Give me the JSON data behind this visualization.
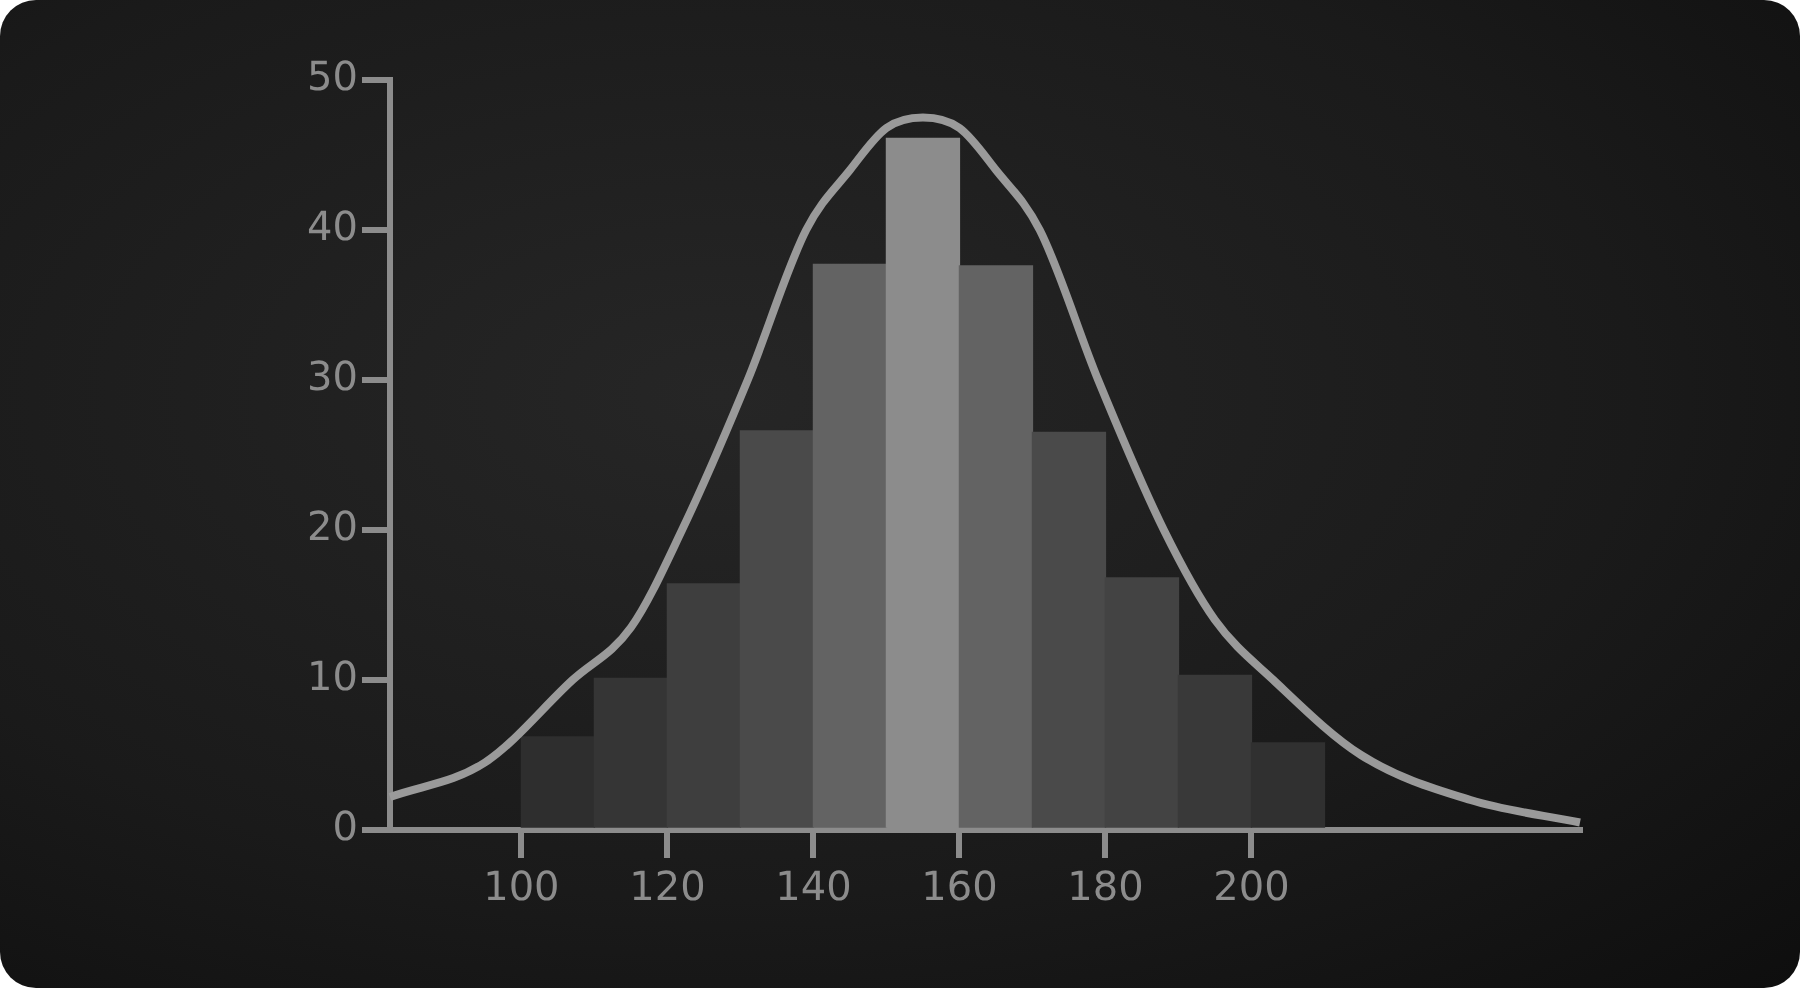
{
  "chart_data": {
    "type": "histogram",
    "bins": [
      100,
      110,
      120,
      130,
      140,
      150,
      160,
      170,
      180,
      190,
      200,
      210
    ],
    "values": [
      6.2,
      10.1,
      16.4,
      26.6,
      37.7,
      46.1,
      37.6,
      26.5,
      16.8,
      10.3,
      5.8
    ],
    "colors": [
      "#2e2e2e",
      "#353535",
      "#3e3e3e",
      "#4a4a4a",
      "#636363",
      "#8c8c8c",
      "#636363",
      "#4a4a4a",
      "#434343",
      "#393939",
      "#303030"
    ],
    "series": [
      {
        "type": "line",
        "color": "#9a9a9a",
        "x": [
          82,
          95,
          107,
          115,
          122,
          131,
          139,
          145,
          150,
          155,
          160,
          165,
          171,
          179,
          188,
          195,
          203,
          215,
          230,
          245
        ],
        "values": [
          2.2,
          4.5,
          10,
          13.5,
          20,
          30,
          40,
          44,
          46.8,
          47.5,
          46.8,
          44,
          40,
          30,
          20,
          14,
          10,
          5,
          2,
          0.5
        ]
      }
    ],
    "xlim": [
      82,
      245
    ],
    "xticks": [
      100,
      120,
      140,
      160,
      180,
      200
    ],
    "ylim": [
      0,
      50
    ],
    "yticks": [
      0,
      10,
      20,
      30,
      40,
      50
    ],
    "grid": false,
    "legend": false,
    "marker": "none",
    "line_style": "solid"
  }
}
